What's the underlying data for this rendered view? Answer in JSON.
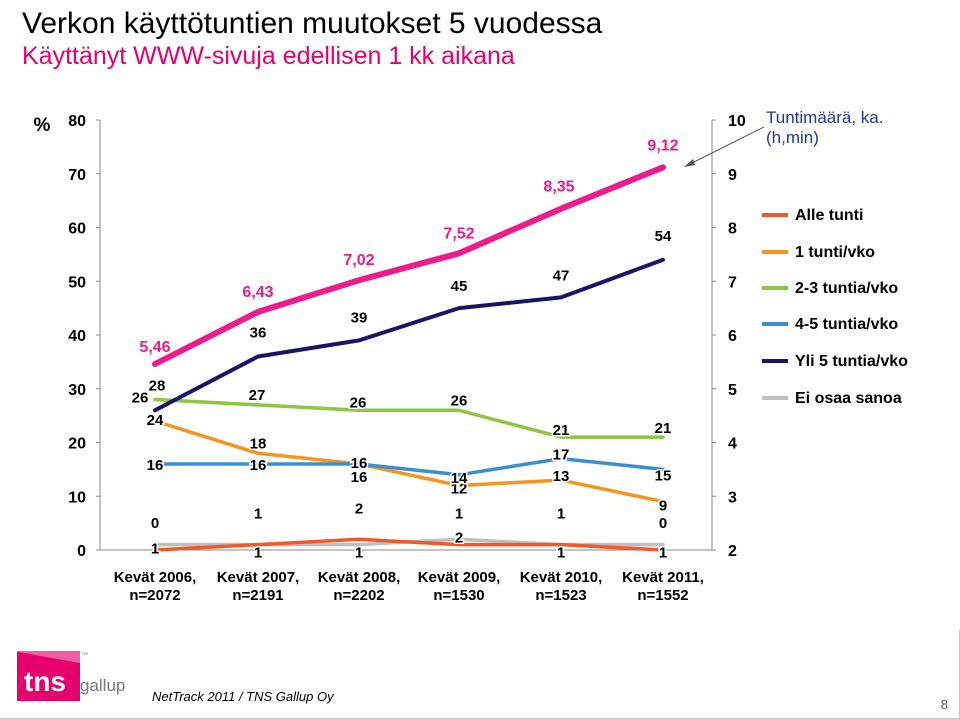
{
  "title": "Verkon käyttötuntien muutokset 5 vuodessa",
  "subtitle": "Käyttänyt WWW-sivuja edellisen 1 kk aikana",
  "hours_note": {
    "line1": "Tuntimäärä, ka.",
    "line2": "(h,min)"
  },
  "footer": {
    "source": "NetTrack 2011 / TNS Gallup Oy",
    "page": "8"
  },
  "logo": {
    "brand": "tns",
    "tm": "™",
    "sub": "gallup"
  },
  "colors": {
    "alle_tunti": "#f05a28",
    "tunti_vko": "#f7941d",
    "kaksi_kolme": "#8dc63f",
    "nelja_viisi": "#3b8fd1",
    "yli_viisi": "#1b1464",
    "ei_osaa": "#bfbfbf",
    "hours": "#ec1c8c",
    "brand_pink": "#e5006e"
  },
  "chart_data": {
    "type": "line",
    "left_axis_symbol": "%",
    "left_ylim": [
      0,
      80
    ],
    "left_ticks": [
      "0",
      "10",
      "20",
      "30",
      "40",
      "50",
      "60",
      "70",
      "80"
    ],
    "right_ylim": [
      2,
      10
    ],
    "right_ticks": [
      "2",
      "3",
      "4",
      "5",
      "6",
      "7",
      "8",
      "9",
      "10"
    ],
    "categories": [
      {
        "line1": "Kevät 2006,",
        "line2": "n=2072"
      },
      {
        "line1": "Kevät 2007,",
        "line2": "n=2191"
      },
      {
        "line1": "Kevät 2008,",
        "line2": "n=2202"
      },
      {
        "line1": "Kevät 2009,",
        "line2": "n=1530"
      },
      {
        "line1": "Kevät 2010,",
        "line2": "n=1523"
      },
      {
        "line1": "Kevät 2011,",
        "line2": "n=1552"
      }
    ],
    "series": [
      {
        "name": "Alle tunti",
        "values": [
          0,
          1,
          2,
          1,
          1,
          0
        ],
        "labels": [
          "0",
          "1",
          "2",
          "1",
          "1",
          "0"
        ],
        "color_key": "alle_tunti"
      },
      {
        "name": "1 tunti/vko",
        "values": [
          24,
          18,
          16,
          12,
          13,
          9
        ],
        "labels": [
          "24",
          "18",
          "16",
          "12",
          "13",
          "9"
        ],
        "color_key": "tunti_vko"
      },
      {
        "name": "2-3 tuntia/vko",
        "values": [
          28,
          27,
          26,
          26,
          21,
          21
        ],
        "labels": [
          "28",
          "27",
          "26",
          "26",
          "21",
          "21"
        ],
        "color_key": "kaksi_kolme"
      },
      {
        "name": "4-5 tuntia/vko",
        "values": [
          16,
          16,
          16,
          14,
          17,
          15
        ],
        "labels": [
          "16",
          "16",
          "16",
          "14",
          "17",
          "15"
        ],
        "color_key": "nelja_viisi"
      },
      {
        "name": "Yli 5 tuntia/vko",
        "values": [
          26,
          36,
          39,
          45,
          47,
          54
        ],
        "labels": [
          "26",
          "36",
          "39",
          "45",
          "47",
          "54"
        ],
        "color_key": "yli_viisi"
      },
      {
        "name": "Ei osaa sanoa",
        "values": [
          1,
          1,
          1,
          2,
          1,
          1
        ],
        "labels": [
          "1",
          "1",
          "1",
          "2",
          "1",
          "1"
        ],
        "color_key": "ei_osaa"
      }
    ],
    "hours_series": {
      "values": [
        5.46,
        6.43,
        7.02,
        7.52,
        8.35,
        9.12
      ],
      "labels": [
        "5,46",
        "6,43",
        "7,02",
        "7,52",
        "8,35",
        "9,12"
      ],
      "axis": "right",
      "color_key": "hours"
    },
    "legend_position": "right",
    "grid": false
  }
}
